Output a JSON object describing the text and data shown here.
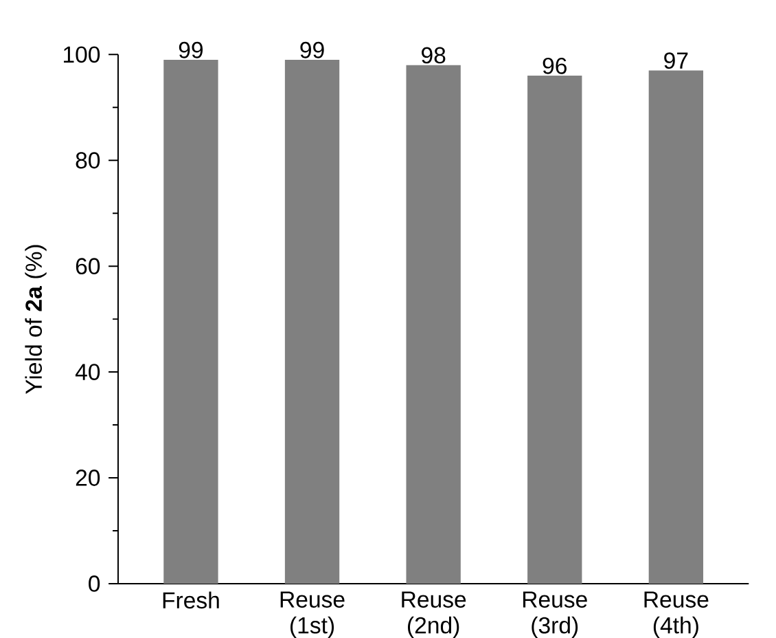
{
  "chart_data": {
    "type": "bar",
    "ylabel": "Yield of **2a** (%)",
    "categories": [
      "Fresh",
      "Reuse (1st)",
      "Reuse (2nd)",
      "Reuse (3rd)",
      "Reuse (4th)"
    ],
    "values": [
      99,
      99,
      98,
      96,
      97
    ],
    "color": "#808080",
    "ylim": [
      0,
      100
    ],
    "yticks": [
      0,
      20,
      40,
      60,
      80,
      100
    ],
    "data_labels": true
  }
}
